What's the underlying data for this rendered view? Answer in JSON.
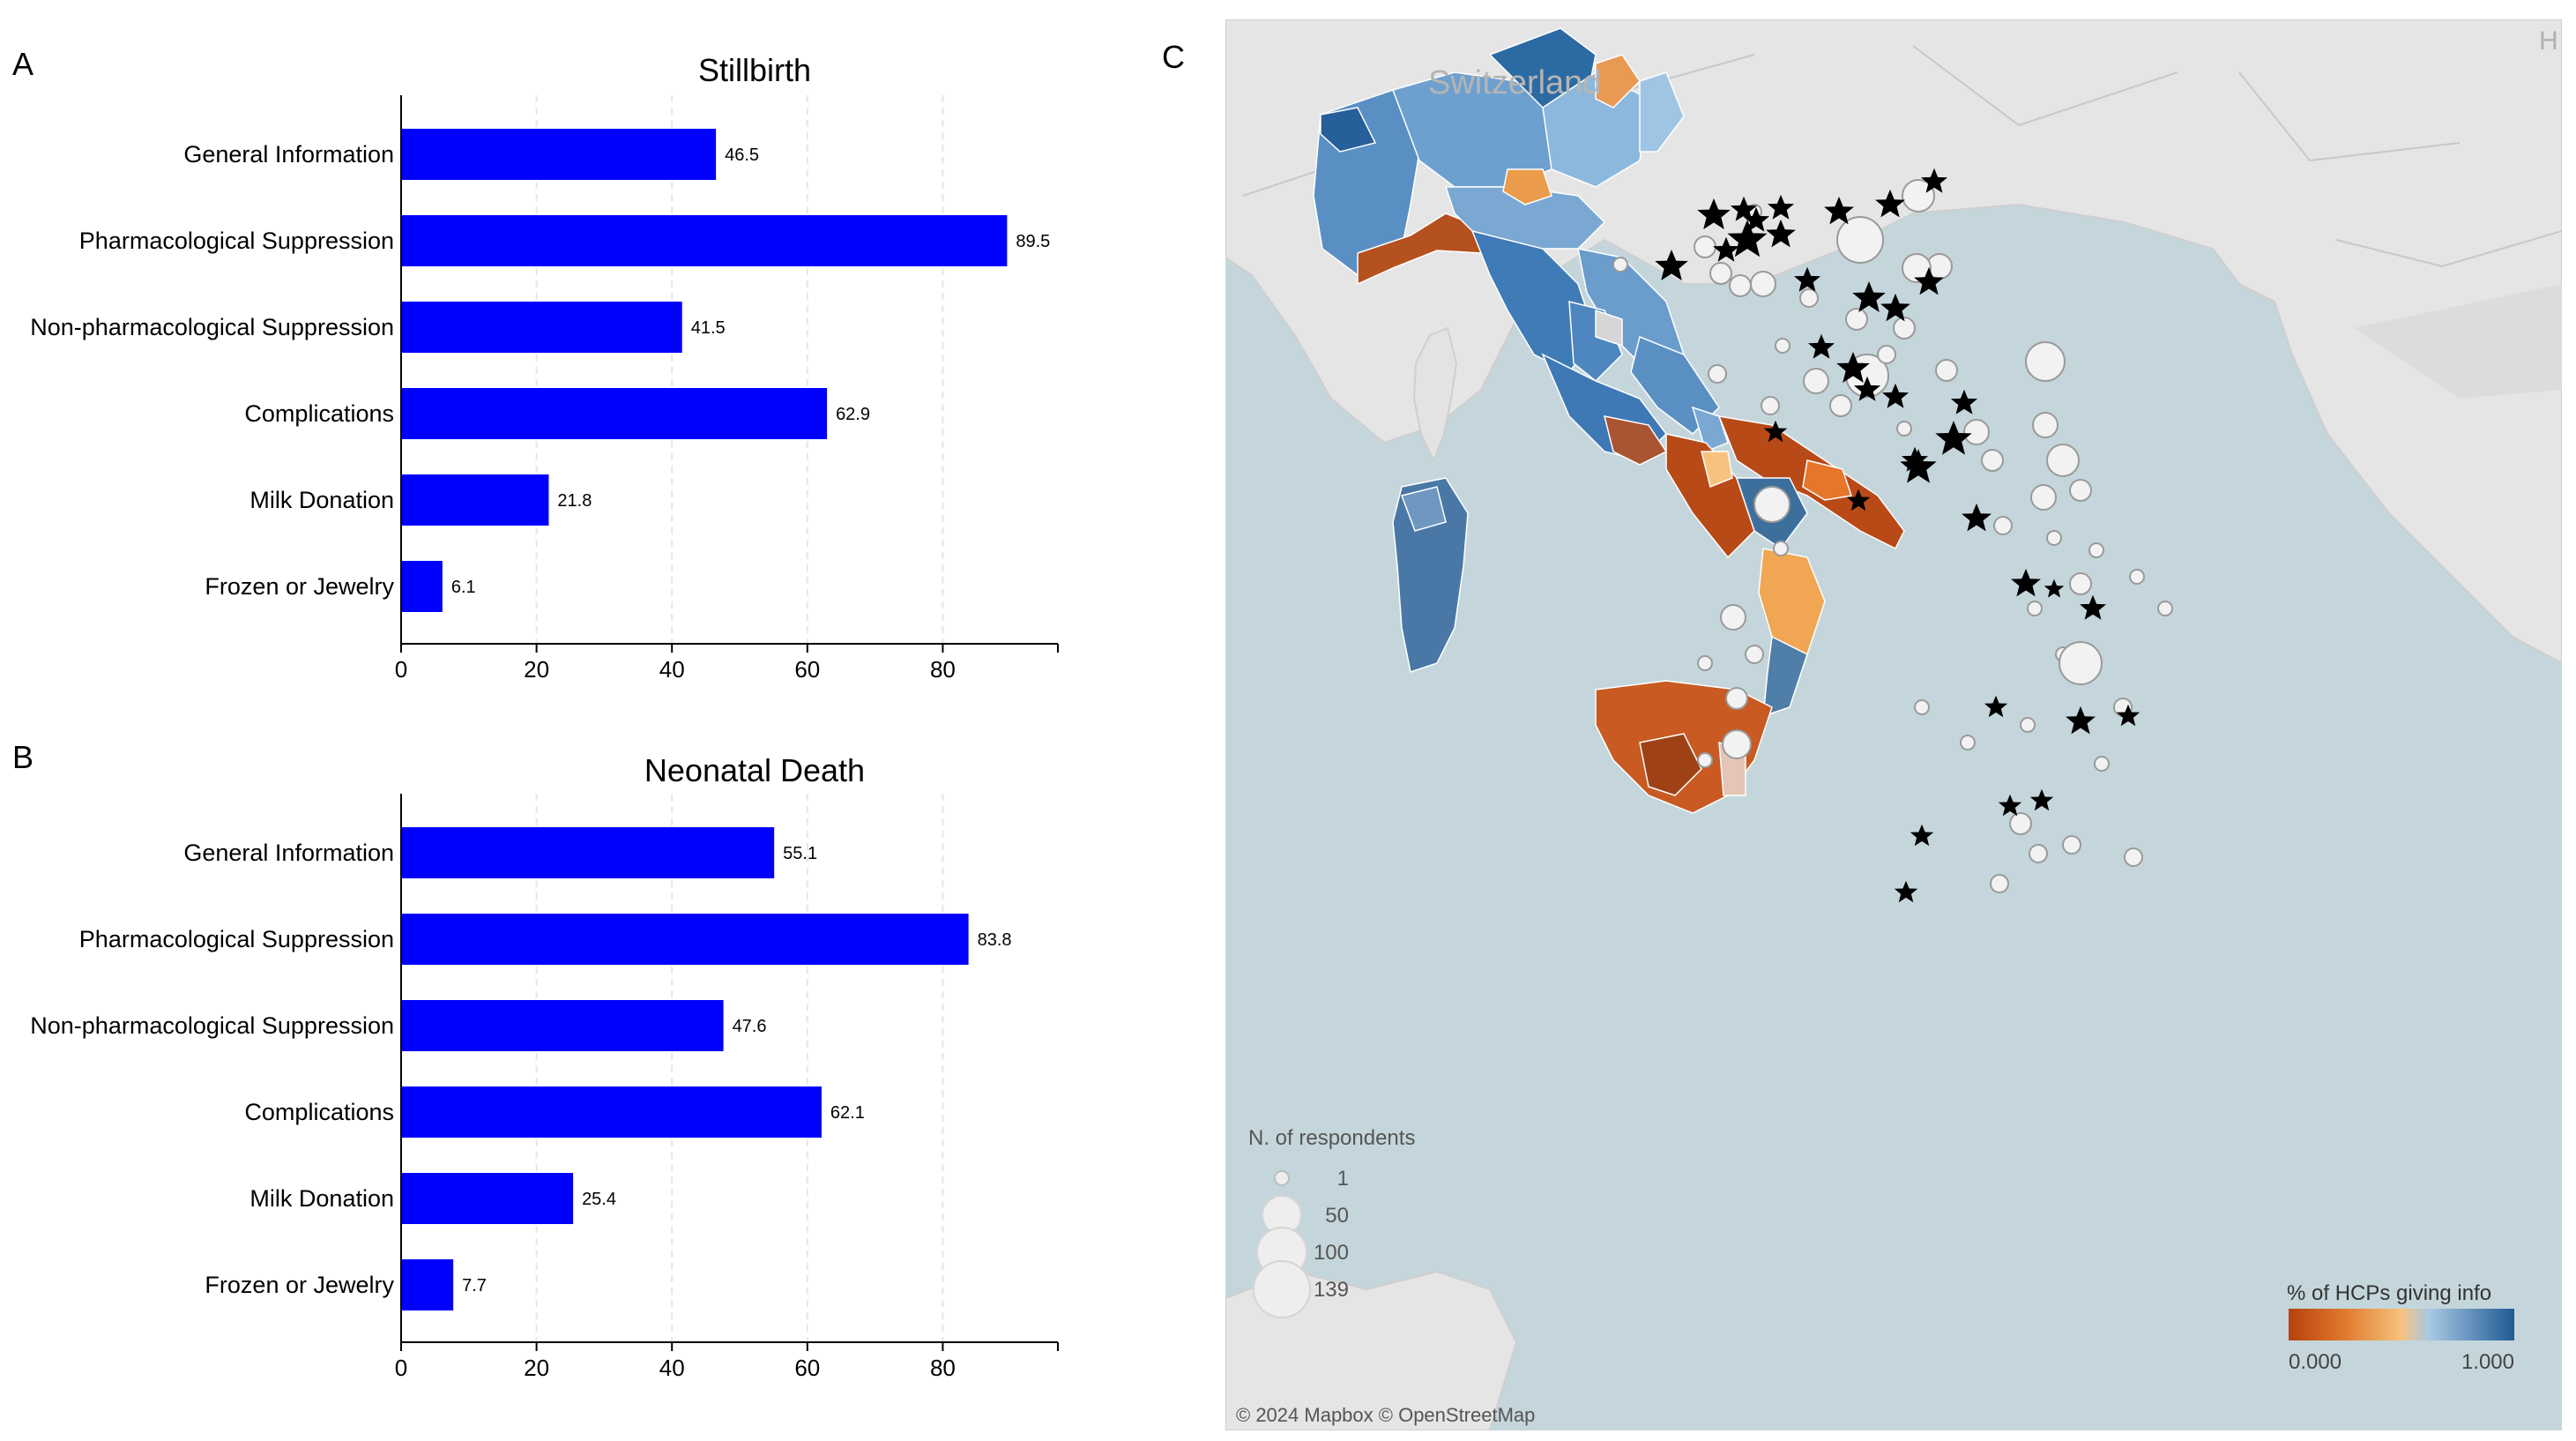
{
  "panels": {
    "a": "A",
    "b": "B",
    "c": "C"
  },
  "chart_data": [
    {
      "type": "bar",
      "orientation": "horizontal",
      "title": "Stillbirth",
      "categories": [
        "General Information",
        "Pharmacological Suppression",
        "Non-pharmacological Suppression",
        "Complications",
        "Milk Donation",
        "Frozen or Jewelry"
      ],
      "values": [
        46.5,
        89.5,
        41.5,
        62.9,
        21.8,
        6.1
      ],
      "value_labels": [
        "46.5",
        "89.5",
        "41.5",
        "62.9",
        "21.8",
        "6.1"
      ],
      "xticks": [
        "0",
        "20",
        "40",
        "60",
        "80"
      ],
      "xlim": [
        0,
        97
      ],
      "bar_color": "#0000ff"
    },
    {
      "type": "bar",
      "orientation": "horizontal",
      "title": "Neonatal Death",
      "categories": [
        "General Information",
        "Pharmacological Suppression",
        "Non-pharmacological Suppression",
        "Complications",
        "Milk Donation",
        "Frozen or Jewelry"
      ],
      "values": [
        55.1,
        83.8,
        47.6,
        62.1,
        25.4,
        7.7
      ],
      "value_labels": [
        "55.1",
        "83.8",
        "47.6",
        "62.1",
        "25.4",
        "7.7"
      ],
      "xticks": [
        "0",
        "20",
        "40",
        "60",
        "80"
      ],
      "xlim": [
        0,
        97
      ],
      "bar_color": "#0000ff"
    }
  ],
  "map": {
    "country_label": "Switzerland",
    "corner_glyph": "H",
    "attribution": "© 2024 Mapbox © OpenStreetMap",
    "size_legend": {
      "title": "N. of respondents",
      "entries": [
        "1",
        "50",
        "100",
        "139"
      ]
    },
    "color_legend": {
      "title": "% of HCPs giving info",
      "min_label": "0.000",
      "max_label": "1.000",
      "low_color": "#b7410e",
      "mid_color": "#f2b266",
      "high_color": "#1f5a94"
    }
  }
}
